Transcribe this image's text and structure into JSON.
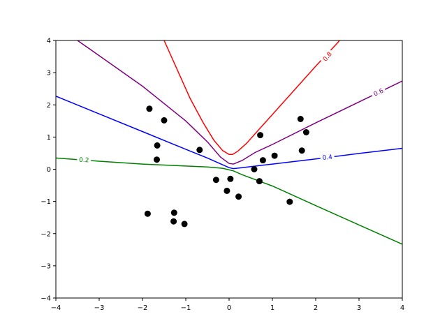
{
  "chart_data": {
    "type": "line",
    "title": "",
    "xlabel": "",
    "ylabel": "",
    "xlim": [
      -4,
      4
    ],
    "ylim": [
      -4,
      4
    ],
    "grid": false,
    "xticks": [
      -4,
      -3,
      -2,
      -1,
      0,
      1,
      2,
      3,
      4
    ],
    "yticks": [
      -4,
      -3,
      -2,
      -1,
      0,
      1,
      2,
      3,
      4
    ],
    "xtick_labels": [
      "−4",
      "−3",
      "−2",
      "−1",
      "0",
      "1",
      "2",
      "3",
      "4"
    ],
    "ytick_labels": [
      "−4",
      "−3",
      "−2",
      "−1",
      "0",
      "1",
      "2",
      "3",
      "4"
    ],
    "points": {
      "color": "#000000",
      "x": [
        -1.84,
        -1.5,
        -1.66,
        -1.67,
        -0.68,
        -0.3,
        -0.05,
        0.03,
        0.22,
        0.58,
        0.7,
        0.72,
        0.78,
        1.05,
        1.65,
        1.68,
        1.78,
        1.4,
        -1.88,
        -1.27,
        -1.28,
        -1.03
      ],
      "y": [
        1.88,
        1.52,
        0.74,
        0.3,
        0.6,
        -0.33,
        -0.67,
        -0.3,
        -0.85,
        0.0,
        -0.37,
        1.06,
        0.28,
        0.42,
        1.56,
        0.58,
        1.15,
        -1.01,
        -1.38,
        -1.35,
        -1.62,
        -1.7
      ]
    },
    "series": [
      {
        "label": "0.2",
        "color": "#008000",
        "label_at": [
          -3.35,
          0.29
        ],
        "label_angle": 3,
        "x": [
          -4,
          -3,
          -2,
          -1,
          -0.5,
          -0.15,
          0.0,
          0.1,
          0.3,
          1.0,
          2.0,
          3.0,
          4.0
        ],
        "y": [
          0.35,
          0.25,
          0.16,
          0.1,
          0.07,
          0.03,
          -0.02,
          -0.05,
          -0.17,
          -0.52,
          -1.13,
          -1.73,
          -2.33
        ]
      },
      {
        "label": "0.4",
        "color": "#0000ff",
        "label_at": [
          2.27,
          0.37
        ],
        "label_angle": -5,
        "x": [
          -4,
          -3,
          -2,
          -1,
          -0.5,
          -0.2,
          0.0,
          0.1,
          0.3,
          1.0,
          2.0,
          3.0,
          4.0
        ],
        "y": [
          2.27,
          1.72,
          1.17,
          0.62,
          0.35,
          0.17,
          0.05,
          0.02,
          0.05,
          0.16,
          0.32,
          0.49,
          0.65
        ]
      },
      {
        "label": "0.6",
        "color": "#800080",
        "label_at": [
          3.45,
          2.39
        ],
        "label_angle": -25,
        "x": [
          -3.5,
          -3,
          -2,
          -1,
          -0.5,
          -0.2,
          0.0,
          0.1,
          0.3,
          0.6,
          1.0,
          2.0,
          3.0,
          4.0
        ],
        "y": [
          4.0,
          3.53,
          2.58,
          1.5,
          0.85,
          0.38,
          0.18,
          0.16,
          0.27,
          0.52,
          0.77,
          1.44,
          2.09,
          2.74
        ]
      },
      {
        "label": "0.8",
        "color": "#ff0000",
        "label_at": [
          2.27,
          3.5
        ],
        "label_angle": -50,
        "x": [
          -1.5,
          -1.2,
          -0.9,
          -0.6,
          -0.35,
          -0.15,
          0.0,
          0.08,
          0.2,
          0.4,
          0.7,
          1.0,
          1.5,
          2.0,
          2.5,
          2.55
        ],
        "y": [
          4.0,
          3.1,
          2.2,
          1.45,
          0.9,
          0.58,
          0.46,
          0.46,
          0.56,
          0.8,
          1.25,
          1.7,
          2.45,
          3.2,
          3.92,
          4.0
        ]
      }
    ]
  }
}
